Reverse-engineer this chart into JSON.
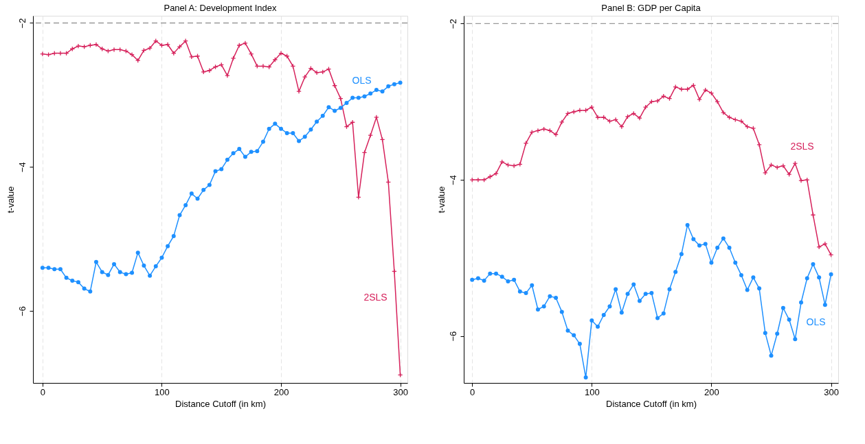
{
  "chart_data": [
    {
      "type": "line",
      "title": "Panel A: Development Index",
      "xlabel": "Distance Cutoff (in km)",
      "ylabel": "t-value",
      "xlim": [
        -8,
        306
      ],
      "xticks": [
        0,
        100,
        200,
        300
      ],
      "ylim": [
        -7.0,
        -1.9
      ],
      "yticks": [
        -2,
        -4,
        -6
      ],
      "grid": "x",
      "ref_lines": [
        {
          "axis": "y",
          "value": -2,
          "color": "#999999",
          "line_style": "dashed"
        }
      ],
      "x": [
        0,
        5,
        10,
        15,
        20,
        25,
        30,
        35,
        40,
        45,
        50,
        55,
        60,
        65,
        70,
        75,
        80,
        85,
        90,
        95,
        100,
        105,
        110,
        115,
        120,
        125,
        130,
        135,
        140,
        145,
        150,
        155,
        160,
        165,
        170,
        175,
        180,
        185,
        190,
        195,
        200,
        205,
        210,
        215,
        220,
        225,
        230,
        235,
        240,
        245,
        250,
        255,
        260,
        265,
        270,
        275,
        280,
        285,
        290,
        295,
        300
      ],
      "series": [
        {
          "name": "2SLS",
          "color": "#d6215b",
          "marker": "cross",
          "values": [
            -2.43,
            -2.44,
            -2.42,
            -2.42,
            -2.42,
            -2.36,
            -2.32,
            -2.33,
            -2.31,
            -2.3,
            -2.36,
            -2.39,
            -2.37,
            -2.37,
            -2.39,
            -2.44,
            -2.52,
            -2.38,
            -2.35,
            -2.25,
            -2.31,
            -2.3,
            -2.42,
            -2.33,
            -2.25,
            -2.47,
            -2.46,
            -2.68,
            -2.66,
            -2.61,
            -2.58,
            -2.73,
            -2.49,
            -2.31,
            -2.28,
            -2.43,
            -2.6,
            -2.6,
            -2.61,
            -2.51,
            -2.42,
            -2.46,
            -2.6,
            -2.95,
            -2.75,
            -2.63,
            -2.69,
            -2.68,
            -2.64,
            -2.87,
            -3.05,
            -3.44,
            -3.38,
            -4.42,
            -3.8,
            -3.56,
            -3.31,
            -3.62,
            -4.21,
            -5.45,
            -6.89
          ]
        },
        {
          "name": "OLS",
          "color": "#1e90ff",
          "marker": "circle",
          "values": [
            -5.4,
            -5.4,
            -5.42,
            -5.42,
            -5.54,
            -5.58,
            -5.6,
            -5.69,
            -5.73,
            -5.32,
            -5.46,
            -5.5,
            -5.35,
            -5.46,
            -5.49,
            -5.47,
            -5.19,
            -5.37,
            -5.51,
            -5.38,
            -5.26,
            -5.1,
            -4.96,
            -4.67,
            -4.53,
            -4.37,
            -4.44,
            -4.32,
            -4.25,
            -4.06,
            -4.03,
            -3.9,
            -3.81,
            -3.75,
            -3.86,
            -3.79,
            -3.78,
            -3.65,
            -3.47,
            -3.4,
            -3.47,
            -3.53,
            -3.53,
            -3.64,
            -3.58,
            -3.48,
            -3.37,
            -3.29,
            -3.17,
            -3.22,
            -3.18,
            -3.11,
            -3.04,
            -3.04,
            -3.02,
            -2.98,
            -2.93,
            -2.95,
            -2.88,
            -2.85,
            -2.83
          ]
        }
      ]
    },
    {
      "type": "line",
      "title": "Panel B: GDP per Capita",
      "xlabel": "Distance Cutoff (in km)",
      "ylabel": "t-value",
      "xlim": [
        -7,
        306
      ],
      "xticks": [
        0,
        100,
        200,
        300
      ],
      "ylim": [
        -6.6,
        -1.9
      ],
      "yticks": [
        -2,
        -4,
        -6
      ],
      "grid": "x",
      "ref_lines": [
        {
          "axis": "y",
          "value": -2,
          "color": "#999999",
          "line_style": "dashed"
        }
      ],
      "x": [
        0,
        5,
        10,
        15,
        20,
        25,
        30,
        35,
        40,
        45,
        50,
        55,
        60,
        65,
        70,
        75,
        80,
        85,
        90,
        95,
        100,
        105,
        110,
        115,
        120,
        125,
        130,
        135,
        140,
        145,
        150,
        155,
        160,
        165,
        170,
        175,
        180,
        185,
        190,
        195,
        200,
        205,
        210,
        215,
        220,
        225,
        230,
        235,
        240,
        245,
        250,
        255,
        260,
        265,
        270,
        275,
        280,
        285,
        290,
        295,
        300
      ],
      "series": [
        {
          "name": "2SLS",
          "color": "#d6215b",
          "marker": "cross",
          "values": [
            -4.0,
            -4.0,
            -4.0,
            -3.96,
            -3.92,
            -3.77,
            -3.81,
            -3.82,
            -3.8,
            -3.53,
            -3.39,
            -3.37,
            -3.35,
            -3.37,
            -3.42,
            -3.26,
            -3.15,
            -3.13,
            -3.11,
            -3.11,
            -3.07,
            -3.2,
            -3.2,
            -3.25,
            -3.23,
            -3.32,
            -3.19,
            -3.15,
            -3.21,
            -3.07,
            -3.0,
            -2.99,
            -2.93,
            -2.96,
            -2.81,
            -2.84,
            -2.84,
            -2.79,
            -2.97,
            -2.85,
            -2.89,
            -3.0,
            -3.14,
            -3.2,
            -3.23,
            -3.25,
            -3.32,
            -3.34,
            -3.55,
            -3.91,
            -3.81,
            -3.84,
            -3.82,
            -3.93,
            -3.79,
            -4.01,
            -4.0,
            -4.45,
            -4.86,
            -4.82,
            -4.96
          ]
        },
        {
          "name": "OLS",
          "color": "#1e90ff",
          "marker": "circle",
          "values": [
            -5.28,
            -5.26,
            -5.29,
            -5.2,
            -5.2,
            -5.24,
            -5.3,
            -5.28,
            -5.43,
            -5.45,
            -5.35,
            -5.66,
            -5.62,
            -5.49,
            -5.51,
            -5.69,
            -5.93,
            -5.99,
            -6.1,
            -6.53,
            -5.8,
            -5.88,
            -5.73,
            -5.62,
            -5.4,
            -5.7,
            -5.46,
            -5.34,
            -5.55,
            -5.46,
            -5.45,
            -5.77,
            -5.71,
            -5.4,
            -5.18,
            -4.95,
            -4.58,
            -4.76,
            -4.84,
            -4.82,
            -5.06,
            -4.87,
            -4.75,
            -4.87,
            -5.06,
            -5.22,
            -5.41,
            -5.25,
            -5.39,
            -5.96,
            -6.25,
            -5.97,
            -5.64,
            -5.79,
            -6.04,
            -5.57,
            -5.26,
            -5.08,
            -5.25,
            -5.6,
            -5.21
          ]
        }
      ]
    }
  ]
}
